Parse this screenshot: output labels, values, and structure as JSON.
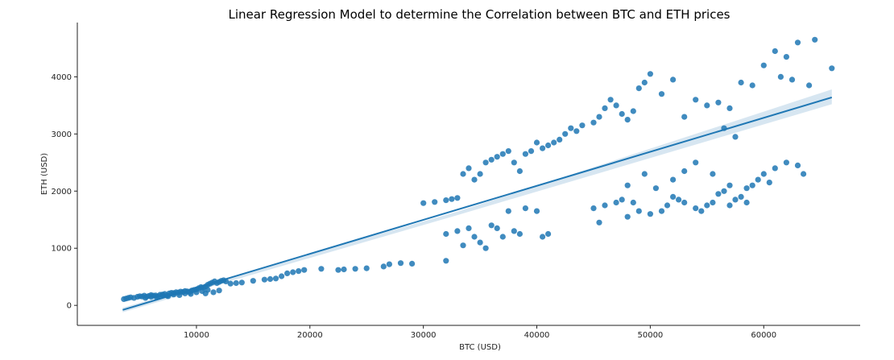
{
  "chart_data": {
    "type": "scatter",
    "title": "Linear Regression Model to determine the Correlation between BTC and ETH prices",
    "xlabel": "BTC (USD)",
    "ylabel": "ETH (USD)",
    "xlim": [
      -500,
      68500
    ],
    "ylim": [
      -350,
      4950
    ],
    "xticks": [
      10000,
      20000,
      30000,
      40000,
      50000,
      60000
    ],
    "yticks": [
      0,
      1000,
      2000,
      3000,
      4000
    ],
    "grid": false,
    "point_color": "#1f77b4",
    "regression_line": {
      "x": [
        3500,
        66000
      ],
      "y": [
        -80,
        3640
      ]
    },
    "confidence_band": {
      "x": [
        3500,
        33000,
        66000
      ],
      "lower": [
        -120,
        1580,
        3520
      ],
      "upper": [
        -40,
        1640,
        3780
      ]
    },
    "points": [
      [
        3600,
        110
      ],
      [
        3800,
        120
      ],
      [
        4000,
        130
      ],
      [
        4200,
        140
      ],
      [
        4500,
        130
      ],
      [
        4800,
        150
      ],
      [
        5000,
        160
      ],
      [
        5200,
        155
      ],
      [
        5400,
        170
      ],
      [
        5600,
        150
      ],
      [
        5800,
        165
      ],
      [
        6000,
        180
      ],
      [
        6200,
        170
      ],
      [
        6400,
        175
      ],
      [
        6600,
        160
      ],
      [
        6800,
        185
      ],
      [
        7000,
        190
      ],
      [
        7200,
        200
      ],
      [
        7400,
        175
      ],
      [
        7600,
        210
      ],
      [
        7800,
        220
      ],
      [
        8000,
        215
      ],
      [
        8200,
        230
      ],
      [
        8400,
        225
      ],
      [
        8600,
        240
      ],
      [
        8800,
        235
      ],
      [
        9000,
        250
      ],
      [
        9200,
        245
      ],
      [
        9400,
        230
      ],
      [
        9600,
        260
      ],
      [
        9800,
        270
      ],
      [
        10000,
        280
      ],
      [
        10200,
        300
      ],
      [
        10400,
        320
      ],
      [
        10600,
        310
      ],
      [
        10800,
        330
      ],
      [
        11000,
        360
      ],
      [
        11200,
        380
      ],
      [
        11400,
        400
      ],
      [
        11600,
        420
      ],
      [
        11800,
        390
      ],
      [
        12000,
        410
      ],
      [
        12200,
        430
      ],
      [
        12400,
        440
      ],
      [
        12600,
        420
      ],
      [
        6000,
        150
      ],
      [
        7000,
        170
      ],
      [
        8000,
        190
      ],
      [
        9000,
        210
      ],
      [
        10000,
        230
      ],
      [
        10500,
        250
      ],
      [
        11000,
        270
      ],
      [
        9500,
        200
      ],
      [
        8500,
        180
      ],
      [
        7500,
        160
      ],
      [
        6500,
        140
      ],
      [
        5500,
        130
      ],
      [
        12000,
        260
      ],
      [
        11500,
        230
      ],
      [
        10800,
        210
      ],
      [
        13000,
        380
      ],
      [
        13500,
        390
      ],
      [
        14000,
        400
      ],
      [
        15000,
        430
      ],
      [
        16000,
        450
      ],
      [
        16500,
        460
      ],
      [
        17000,
        470
      ],
      [
        17500,
        510
      ],
      [
        18000,
        560
      ],
      [
        18500,
        580
      ],
      [
        19000,
        600
      ],
      [
        19500,
        620
      ],
      [
        21000,
        640
      ],
      [
        22500,
        620
      ],
      [
        23000,
        630
      ],
      [
        24000,
        640
      ],
      [
        25000,
        650
      ],
      [
        26500,
        680
      ],
      [
        27000,
        720
      ],
      [
        28000,
        740
      ],
      [
        29000,
        730
      ],
      [
        30000,
        1790
      ],
      [
        31000,
        1810
      ],
      [
        32000,
        1840
      ],
      [
        32500,
        1860
      ],
      [
        33000,
        1880
      ],
      [
        33500,
        2300
      ],
      [
        34000,
        2400
      ],
      [
        34500,
        2200
      ],
      [
        35000,
        2300
      ],
      [
        35500,
        2500
      ],
      [
        36000,
        2550
      ],
      [
        36500,
        2600
      ],
      [
        37000,
        2650
      ],
      [
        37500,
        2700
      ],
      [
        38000,
        2500
      ],
      [
        38500,
        2350
      ],
      [
        39000,
        2650
      ],
      [
        39500,
        2700
      ],
      [
        40000,
        2850
      ],
      [
        40500,
        2750
      ],
      [
        41000,
        2800
      ],
      [
        41500,
        2850
      ],
      [
        42000,
        2900
      ],
      [
        42500,
        3000
      ],
      [
        43000,
        3100
      ],
      [
        43500,
        3050
      ],
      [
        44000,
        3150
      ],
      [
        45000,
        3200
      ],
      [
        45500,
        3300
      ],
      [
        46000,
        3450
      ],
      [
        46500,
        3600
      ],
      [
        47000,
        3500
      ],
      [
        47500,
        3350
      ],
      [
        48000,
        3250
      ],
      [
        48500,
        3400
      ],
      [
        49000,
        3800
      ],
      [
        49500,
        3900
      ],
      [
        50000,
        4050
      ],
      [
        51000,
        3700
      ],
      [
        52000,
        3950
      ],
      [
        53000,
        3300
      ],
      [
        54000,
        3600
      ],
      [
        55000,
        3500
      ],
      [
        56000,
        3550
      ],
      [
        57000,
        3450
      ],
      [
        58000,
        3900
      ],
      [
        59000,
        3850
      ],
      [
        60000,
        4200
      ],
      [
        61000,
        4450
      ],
      [
        61500,
        4000
      ],
      [
        62000,
        4350
      ],
      [
        62500,
        3950
      ],
      [
        63000,
        4600
      ],
      [
        64000,
        3850
      ],
      [
        64500,
        4650
      ],
      [
        66000,
        4150
      ],
      [
        57500,
        2950
      ],
      [
        56500,
        3100
      ],
      [
        32000,
        1250
      ],
      [
        33000,
        1300
      ],
      [
        34000,
        1350
      ],
      [
        34500,
        1200
      ],
      [
        35000,
        1100
      ],
      [
        36000,
        1400
      ],
      [
        36500,
        1350
      ],
      [
        37000,
        1200
      ],
      [
        37500,
        1650
      ],
      [
        38000,
        1300
      ],
      [
        39000,
        1700
      ],
      [
        40000,
        1650
      ],
      [
        41000,
        1250
      ],
      [
        35500,
        1000
      ],
      [
        33500,
        1050
      ],
      [
        32000,
        780
      ],
      [
        38500,
        1250
      ],
      [
        40500,
        1200
      ],
      [
        45000,
        1700
      ],
      [
        45500,
        1450
      ],
      [
        46000,
        1750
      ],
      [
        47000,
        1800
      ],
      [
        47500,
        1850
      ],
      [
        48000,
        1550
      ],
      [
        48500,
        1800
      ],
      [
        49000,
        1650
      ],
      [
        50000,
        1600
      ],
      [
        51000,
        1650
      ],
      [
        51500,
        1750
      ],
      [
        52000,
        1900
      ],
      [
        52500,
        1850
      ],
      [
        53000,
        1800
      ],
      [
        54000,
        1700
      ],
      [
        54500,
        1650
      ],
      [
        55000,
        1750
      ],
      [
        55500,
        1800
      ],
      [
        56000,
        1950
      ],
      [
        56500,
        2000
      ],
      [
        57000,
        1750
      ],
      [
        57500,
        1850
      ],
      [
        58000,
        1900
      ],
      [
        58500,
        2050
      ],
      [
        59000,
        2100
      ],
      [
        59500,
        2200
      ],
      [
        60000,
        2300
      ],
      [
        61000,
        2400
      ],
      [
        62000,
        2500
      ],
      [
        63000,
        2450
      ],
      [
        63500,
        2300
      ],
      [
        60500,
        2150
      ],
      [
        58500,
        1800
      ],
      [
        57000,
        2100
      ],
      [
        55500,
        2300
      ],
      [
        54000,
        2500
      ],
      [
        53000,
        2350
      ],
      [
        52000,
        2200
      ],
      [
        50500,
        2050
      ],
      [
        49500,
        2300
      ],
      [
        48000,
        2100
      ]
    ]
  }
}
